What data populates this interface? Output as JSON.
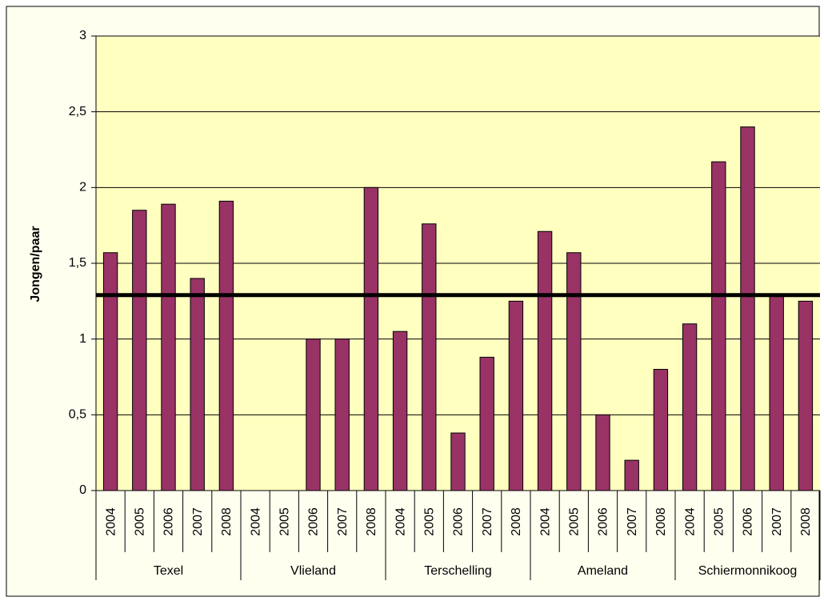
{
  "chart_data": {
    "type": "bar",
    "ylabel": "Jongen/paar",
    "categories": [
      "2004",
      "2005",
      "2006",
      "2007",
      "2008",
      "2004",
      "2005",
      "2006",
      "2007",
      "2008",
      "2004",
      "2005",
      "2006",
      "2007",
      "2008",
      "2004",
      "2005",
      "2006",
      "2007",
      "2008",
      "2004",
      "2005",
      "2006",
      "2007",
      "2008"
    ],
    "groups": [
      "Texel",
      "Vlieland",
      "Terschelling",
      "Ameland",
      "Schiermonnikoog"
    ],
    "values": [
      1.57,
      1.85,
      1.89,
      1.4,
      1.91,
      null,
      null,
      1.0,
      1.0,
      2.0,
      1.05,
      1.76,
      0.38,
      0.88,
      1.25,
      1.71,
      1.57,
      0.5,
      0.2,
      0.8,
      1.1,
      2.17,
      2.4,
      1.29,
      1.25
    ],
    "color": "#993366",
    "reference_line": 1.29,
    "ylim": [
      0,
      3
    ],
    "yticks": [
      0,
      {
        "value": 0.5,
        "label": "0,5"
      },
      1,
      {
        "value": 1.5,
        "label": "1,5"
      },
      2,
      {
        "value": 2.5,
        "label": "2,5"
      },
      3
    ],
    "grid": true
  }
}
